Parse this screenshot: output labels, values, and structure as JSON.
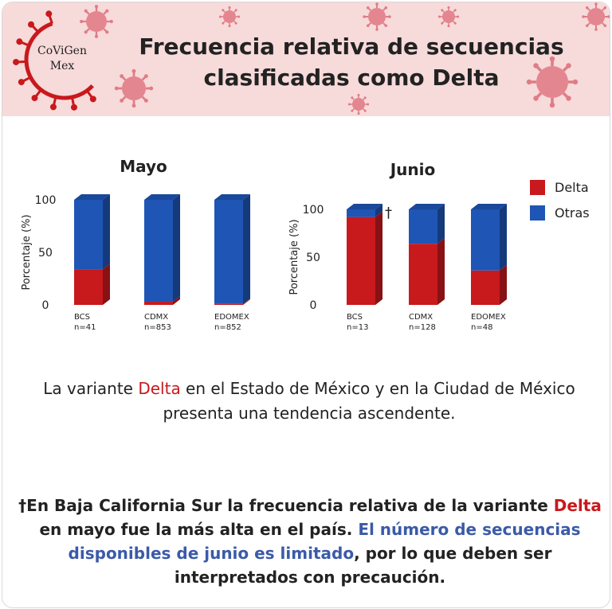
{
  "header": {
    "logo_line1": "CoViGen",
    "logo_line2": "Mex",
    "title_line1": "Frecuencia relativa de secuencias",
    "title_line2": "clasificadas como Delta"
  },
  "colors": {
    "delta": "#c8191d",
    "otras": "#1f55b5",
    "header_bg": "#f7dada",
    "virus": "#e07c86",
    "highlight_blue": "#3b5aa8"
  },
  "legend": [
    {
      "label": "Delta",
      "color": "#c8191d"
    },
    {
      "label": "Otras",
      "color": "#1f55b5"
    }
  ],
  "chart_data": [
    {
      "type": "bar",
      "stacked": true,
      "title": "Mayo",
      "ylabel": "Porcentaje (%)",
      "ylim": [
        0,
        100
      ],
      "yticks": [
        0,
        50,
        100
      ],
      "categories": [
        "BCS",
        "CDMX",
        "EDOMEX"
      ],
      "sample_sizes": [
        "n=41",
        "n=853",
        "n=852"
      ],
      "series": [
        {
          "name": "Delta",
          "values": [
            34,
            3,
            1
          ]
        },
        {
          "name": "Otras",
          "values": [
            66,
            97,
            99
          ]
        }
      ]
    },
    {
      "type": "bar",
      "stacked": true,
      "title": "Junio",
      "ylabel": "Porcentaje (%)",
      "ylim": [
        0,
        100
      ],
      "yticks": [
        0,
        50,
        100
      ],
      "categories": [
        "BCS",
        "CDMX",
        "EDOMEX"
      ],
      "sample_sizes": [
        "n=13",
        "n=128",
        "n=48"
      ],
      "annotation": "†",
      "series": [
        {
          "name": "Delta",
          "values": [
            92,
            64,
            36
          ]
        },
        {
          "name": "Otras",
          "values": [
            8,
            36,
            64
          ]
        }
      ]
    }
  ],
  "text1": {
    "p1": "La variante ",
    "delta": "Delta",
    "p2": " en el Estado de México y en la Ciudad de México presenta una tendencia ascendente."
  },
  "text2": {
    "p1": "†En Baja California Sur la frecuencia relativa de la variante ",
    "delta": "Delta",
    "p2": " en mayo fue la más alta en el país. ",
    "blue": "El número de secuencias disponibles de junio es limitado",
    "p3": ", por lo que deben ser interpretados con precaución."
  }
}
